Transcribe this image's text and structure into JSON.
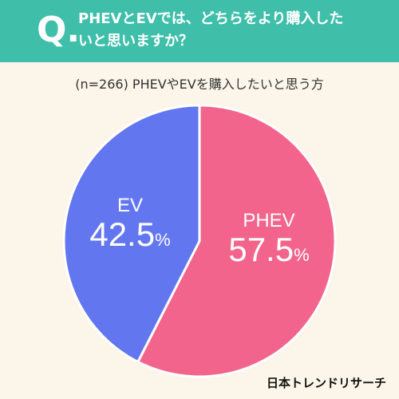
{
  "header": {
    "q_mark": "Q.",
    "question": "PHEVとEVでは、どちらをより購入したいと思いますか？"
  },
  "subtitle": "(n=266) PHEVやEVを購入したいと思う方",
  "brand": "日本トレンドリサーチ",
  "colors": {
    "header_bg": "#3fbfaa",
    "page_bg": "#fbf6e9",
    "ev": "#6277ef",
    "phev": "#f2648c"
  },
  "chart_data": {
    "type": "pie",
    "title": "",
    "slices": [
      {
        "label": "EV",
        "value": 42.5,
        "value_text": "42.5",
        "unit": "%",
        "color": "#6277ef"
      },
      {
        "label": "PHEV",
        "value": 57.5,
        "value_text": "57.5",
        "unit": "%",
        "color": "#f2648c"
      }
    ]
  }
}
